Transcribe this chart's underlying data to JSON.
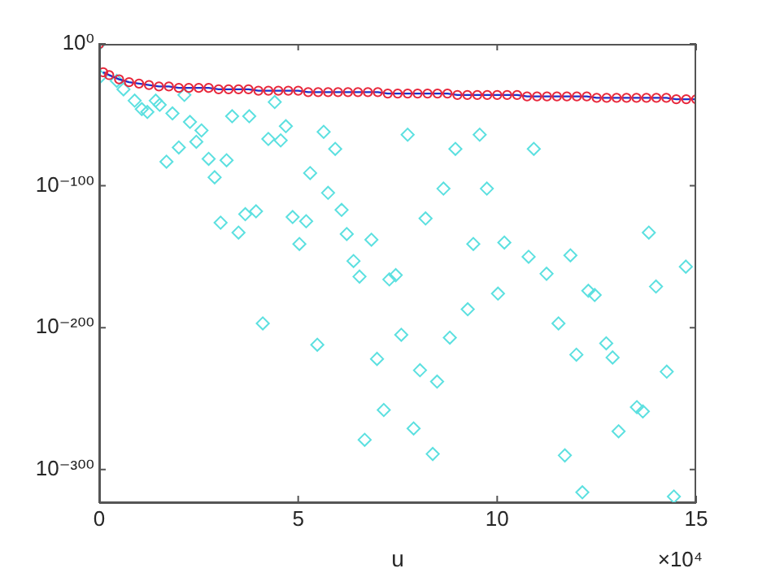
{
  "chart_data": {
    "type": "scatter",
    "xlabel": "u",
    "log": "y",
    "grid": false,
    "legend": false,
    "xlim": [
      0,
      15
    ],
    "xticks": [
      0,
      5,
      10,
      15
    ],
    "ylim": [
      1e-323,
      1
    ],
    "yticks": [
      {
        "value": 1,
        "label": "10⁰"
      },
      {
        "value": 1e-100,
        "label": "10⁻¹⁰⁰"
      },
      {
        "value": 1e-200,
        "label": "10⁻²⁰⁰"
      },
      {
        "value": 1e-300,
        "label": "10⁻³⁰⁰"
      }
    ],
    "annotations": [
      "×10⁴"
    ],
    "series": [
      {
        "type": "scatter",
        "marker": "circle",
        "color": "#e8283c",
        "x": [
          0,
          0.1,
          0.25,
          0.5,
          0.75,
          1,
          1.25,
          1.5,
          1.75,
          2,
          2.25,
          2.5,
          2.75,
          3,
          3.25,
          3.5,
          3.75,
          4,
          4.25,
          4.5,
          4.75,
          5,
          5.25,
          5.5,
          5.75,
          6,
          6.25,
          6.5,
          6.75,
          7,
          7.25,
          7.5,
          7.75,
          8,
          8.25,
          8.5,
          8.75,
          9,
          9.25,
          9.5,
          9.75,
          10,
          10.25,
          10.5,
          10.75,
          11,
          11.25,
          11.5,
          11.75,
          12,
          12.25,
          12.5,
          12.75,
          13,
          13.25,
          13.5,
          13.75,
          14,
          14.25,
          14.5,
          14.75,
          15
        ],
        "values": [
          1,
          1e-20,
          1e-22,
          1e-25,
          1e-27,
          1e-28,
          1e-29,
          1e-30,
          1e-30,
          1e-31,
          1e-31,
          1e-31,
          1e-31,
          1e-32,
          1e-32,
          1e-32,
          1e-32,
          1e-33,
          1e-33,
          1e-33,
          1e-33,
          1e-33,
          1e-34,
          1e-34,
          1e-34,
          1e-34,
          1e-34,
          1e-34,
          1e-34,
          1e-34,
          1e-35,
          1e-35,
          1e-35,
          1e-35,
          1e-35,
          1e-35,
          1e-35,
          1e-36,
          1e-36,
          1e-36,
          1e-36,
          1e-36,
          1e-36,
          1e-36,
          1e-37,
          1e-37,
          1e-37,
          1e-37,
          1e-37,
          1e-37,
          1e-37,
          1e-38,
          1e-38,
          1e-38,
          1e-38,
          1e-38,
          1e-38,
          1e-38,
          1e-38,
          1e-39,
          1e-39,
          1e-39
        ]
      },
      {
        "type": "line",
        "marker": "none",
        "color": "#2030c8",
        "x": [
          0.1,
          0.25,
          0.5,
          0.75,
          1,
          1.25,
          1.5,
          1.75,
          2,
          2.25,
          2.5,
          2.75,
          3,
          3.25,
          3.5,
          3.75,
          4,
          4.25,
          4.5,
          4.75,
          5,
          5.25,
          5.5,
          5.75,
          6,
          6.25,
          6.5,
          6.75,
          7,
          7.25,
          7.5,
          7.75,
          8,
          8.25,
          8.5,
          8.75,
          9,
          9.25,
          9.5,
          9.75,
          10,
          10.25,
          10.5,
          10.75,
          11,
          11.25,
          11.5,
          11.75,
          12,
          12.25,
          12.5,
          12.75,
          13,
          13.25,
          13.5,
          13.75,
          14,
          14.25,
          14.5,
          14.75,
          15
        ],
        "values": [
          1e-20,
          1e-22,
          1e-25,
          1e-27,
          1e-28,
          1e-29,
          1e-30,
          1e-30,
          1e-31,
          1e-31,
          1e-31,
          1e-31,
          1e-32,
          1e-32,
          1e-32,
          1e-32,
          1e-33,
          1e-33,
          1e-33,
          1e-33,
          1e-33,
          1e-34,
          1e-34,
          1e-34,
          1e-34,
          1e-34,
          1e-34,
          1e-34,
          1e-34,
          1e-35,
          1e-35,
          1e-35,
          1e-35,
          1e-35,
          1e-35,
          1e-35,
          1e-36,
          1e-36,
          1e-36,
          1e-36,
          1e-36,
          1e-36,
          1e-36,
          1e-37,
          1e-37,
          1e-37,
          1e-37,
          1e-37,
          1e-37,
          1e-37,
          1e-38,
          1e-38,
          1e-38,
          1e-38,
          1e-38,
          1e-38,
          1e-38,
          1e-38,
          1e-39,
          1e-39,
          1e-39
        ]
      },
      {
        "type": "scatter",
        "marker": "diamond",
        "color": "#5ce0e0",
        "x": [
          0,
          0.03,
          0.44,
          0.61,
          0.89,
          1.07,
          1.21,
          1.42,
          1.52,
          1.84,
          2.14,
          2.28,
          2.57,
          2.44,
          2.0,
          1.69,
          2.75,
          3.2,
          2.9,
          3.34,
          3.77,
          4.41,
          4.25,
          4.56,
          4.69,
          5.3,
          5.64,
          5.93,
          5.75,
          7.75,
          8.95,
          9.56,
          8.65,
          9.74,
          10.92,
          3.05,
          3.5,
          3.67,
          3.94,
          4.86,
          5.03,
          5.2,
          6.09,
          6.22,
          6.84,
          6.39,
          6.54,
          7.29,
          7.45,
          8.2,
          9.4,
          10.18,
          10.02,
          9.26,
          10.79,
          11.24,
          11.84,
          12.29,
          12.45,
          13.81,
          13.99,
          14.74,
          4.11,
          5.48,
          6.98,
          7.59,
          8.81,
          11.54,
          11.99,
          12.74,
          12.9,
          14.26,
          8.06,
          8.49,
          7.15,
          7.9,
          6.67,
          8.38,
          11.7,
          13.51,
          13.66,
          13.05,
          12.14,
          14.44
        ],
        "values": [
          1,
          1e-23,
          1e-26,
          1e-32,
          1e-40,
          1e-46,
          1e-48,
          1e-40,
          1e-43,
          1e-49,
          1e-36,
          1e-55,
          1e-61,
          1e-69,
          1e-73,
          1e-83,
          1e-81,
          1e-82,
          1e-94,
          1e-51,
          1e-51,
          1e-41,
          1e-67,
          1e-68,
          1e-58,
          1e-91,
          1e-62,
          1e-74,
          1e-105,
          1e-64,
          1e-74,
          1e-64,
          1e-102,
          1e-102,
          1e-74,
          1e-126,
          1e-133,
          1e-120,
          1e-118,
          1e-122,
          1e-141,
          1e-125,
          1e-117,
          1e-134,
          1e-138,
          1e-153,
          1e-164,
          1e-166,
          1e-163,
          1e-123,
          1e-141,
          1e-140,
          1e-176,
          1e-187,
          1e-150,
          1e-162,
          1e-149,
          1e-174,
          1e-177,
          1e-133,
          1e-171,
          1e-157,
          1e-197,
          1e-212,
          1e-222,
          1e-205,
          1e-207,
          1e-197,
          1e-219,
          1e-211,
          1e-221,
          1e-231,
          1e-230,
          1e-238,
          1e-258,
          1e-271,
          1e-279,
          1e-289,
          1e-290,
          1e-256,
          1e-259,
          1e-273,
          1e-316,
          1e-319
        ]
      }
    ]
  }
}
